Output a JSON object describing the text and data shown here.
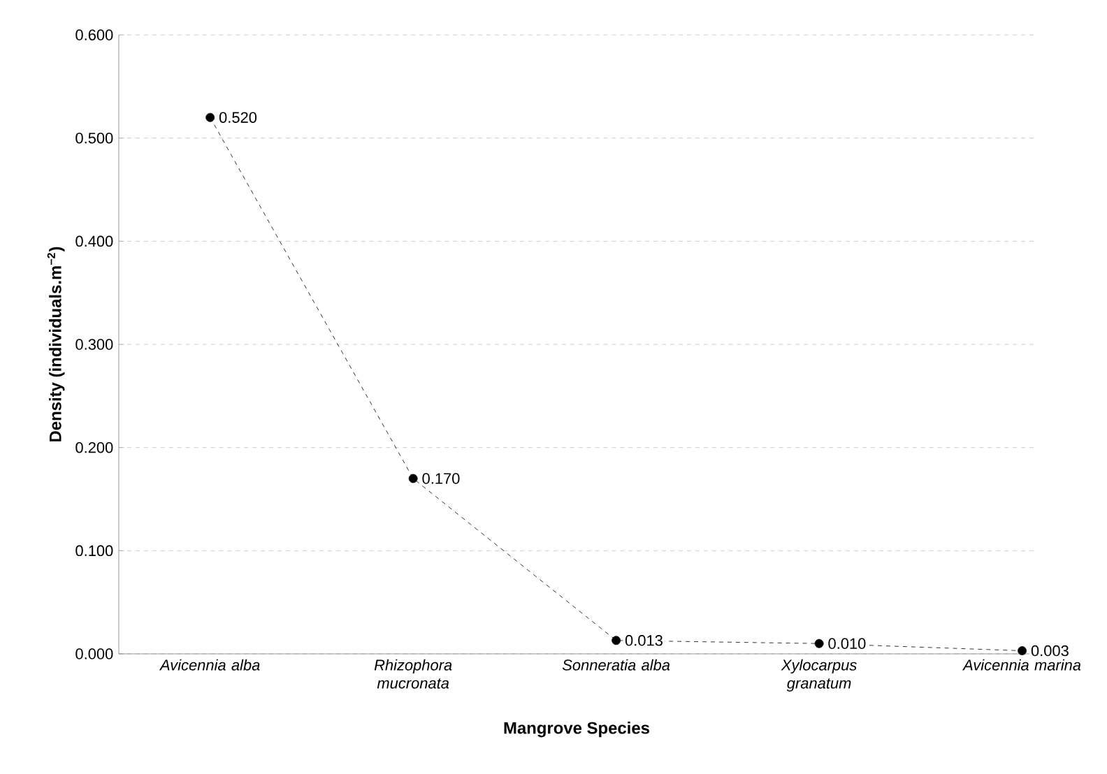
{
  "chart_data": {
    "type": "line",
    "xlabel": "Mangrove Species",
    "ylabel": "Density (individuals.m$^{−2}$)",
    "categories": [
      "Avicennia alba",
      "Rhizophora mucronata",
      "Sonneratia alba",
      "Xylocarpus granatum",
      "Avicennia marina"
    ],
    "series": [
      {
        "color": "#000000",
        "values": [
          0.52,
          0.17,
          0.013,
          0.01,
          0.003
        ],
        "value_labels": [
          "0.520",
          "0.170",
          "0.013",
          "0.010",
          "0.003"
        ]
      }
    ],
    "ylim": [
      0,
      0.6
    ],
    "yticks": [
      {
        "value": 0,
        "label": "0.000"
      },
      {
        "value": 0.1,
        "label": "0.100"
      },
      {
        "value": 0.2,
        "label": "0.200"
      },
      {
        "value": 0.3,
        "label": "0.300"
      },
      {
        "value": 0.4,
        "label": "0.400"
      },
      {
        "value": 0.5,
        "label": "0.500"
      },
      {
        "value": 0.6,
        "label": "0.600"
      }
    ],
    "grid": "y",
    "marker": "circle",
    "line_style": "dashed"
  }
}
